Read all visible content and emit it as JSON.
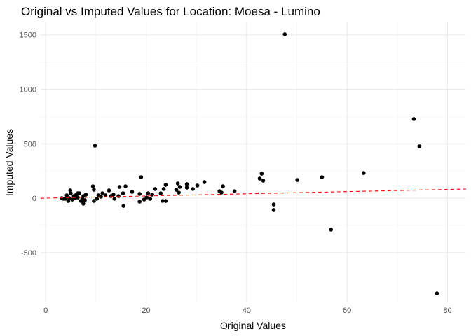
{
  "chart_data": {
    "type": "scatter",
    "title": "Original vs Imputed Values for Location: Moesa - Lumino",
    "x_label": "Original Values",
    "y_label": "Imputed Values",
    "color": "#000000",
    "grid": true,
    "minor_grid": true,
    "identity_line": true,
    "identity_color": "#ff0000",
    "xlim": [
      -1,
      83.7
    ],
    "ylim": [
      -958,
      1614
    ],
    "xticks": [
      0,
      20,
      40,
      60,
      80
    ],
    "yticks": [
      -500,
      0,
      500,
      1000,
      1500
    ],
    "x": [
      47.6,
      73.3,
      74.4,
      77.9,
      9.8,
      56.8,
      45.4,
      45.4,
      55.0,
      50.1,
      63.3,
      43.0,
      43.3,
      42.6,
      37.6,
      35.3,
      34.6,
      35.0,
      31.6,
      30.2,
      29.3,
      28.1,
      28.1,
      26.5,
      26.3,
      26.7,
      26.0,
      23.9,
      23.9,
      23.3,
      23.5,
      22.9,
      21.8,
      21.2,
      20.8,
      20.4,
      20.1,
      19.0,
      18.7,
      19.6,
      18.7,
      17.2,
      15.9,
      15.5,
      15.4,
      14.7,
      14.5,
      13.7,
      13.5,
      13.0,
      12.6,
      11.9,
      11.3,
      11.0,
      10.5,
      10.2,
      9.6,
      9.6,
      9.4,
      7.5,
      7.5,
      7.3,
      7.0,
      6.7,
      6.4,
      6.1,
      5.9,
      5.6,
      5.3,
      5.0,
      4.9,
      4.7,
      4.5,
      4.2,
      3.9,
      3.5,
      3.2,
      7.8,
      8.0,
      6.4
    ],
    "y": [
      1505,
      727,
      476,
      -875,
      482,
      -289,
      -58,
      -109,
      193,
      167,
      231,
      225,
      161,
      180,
      64,
      109,
      64,
      51,
      148,
      116,
      84,
      129,
      96,
      51,
      135,
      103,
      77,
      122,
      -26,
      -26,
      84,
      45,
      84,
      32,
      -6,
      45,
      6,
      193,
      39,
      -13,
      -32,
      58,
      109,
      -71,
      45,
      103,
      19,
      -6,
      32,
      19,
      71,
      26,
      45,
      13,
      26,
      -6,
      -26,
      77,
      109,
      19,
      -51,
      -6,
      -26,
      45,
      6,
      32,
      0,
      19,
      -13,
      45,
      71,
      0,
      -26,
      26,
      -6,
      -6,
      0,
      -19,
      32,
      45
    ]
  }
}
